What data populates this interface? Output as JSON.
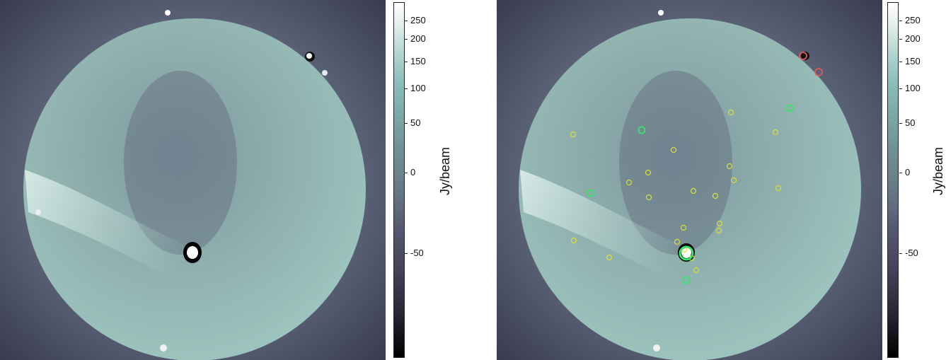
{
  "colorbar": {
    "label": "Jy/beam",
    "ticks": [
      "250",
      "200",
      "150",
      "100",
      "50",
      "0",
      "-50"
    ],
    "colors": {
      "top": "#ffffff",
      "mid": "#7aa8a7",
      "bottom": "#000000"
    }
  },
  "markers": {
    "yellow_color": "#d8df3a",
    "green_color": "#3fe06a",
    "red_color": "#e05a5a",
    "yellow_count": 21,
    "green_count": 5,
    "red_count": 2
  }
}
